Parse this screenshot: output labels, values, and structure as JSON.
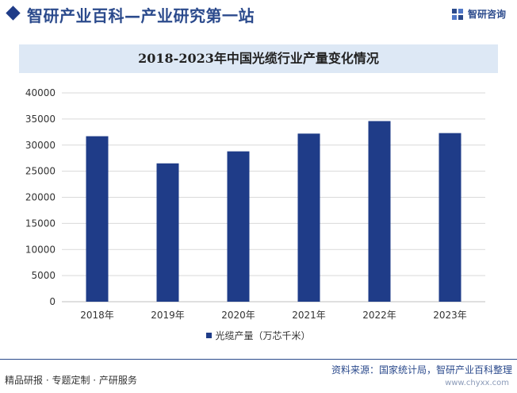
{
  "header": {
    "title": "智研产业百科—产业研究第一站",
    "logo_text": "智研咨询",
    "logo_icon": "zhiyan-logo-icon",
    "accent_color": "#1f3c88"
  },
  "chart_data": {
    "type": "bar",
    "title": "2018-2023年中国光缆行业产量变化情况",
    "categories": [
      "2018年",
      "2019年",
      "2020年",
      "2021年",
      "2022年",
      "2023年"
    ],
    "series": [
      {
        "name": "光缆产量（万芯千米）",
        "values": [
          31700,
          26500,
          28800,
          32200,
          34600,
          32300
        ],
        "color": "#1f3c88"
      }
    ],
    "ylim": [
      0,
      40000
    ],
    "yticks": [
      "40000",
      "35000",
      "30000",
      "25000",
      "20000",
      "15000",
      "10000",
      "5000",
      "0"
    ],
    "xlabel": "",
    "ylabel": "",
    "grid": true,
    "legend_position": "bottom"
  },
  "footer": {
    "left_text": "精品研报 · 专题定制 · 产研服务",
    "source_text": "资料来源：国家统计局，智研产业百科整理",
    "url_text": "www.chyxx.com"
  }
}
